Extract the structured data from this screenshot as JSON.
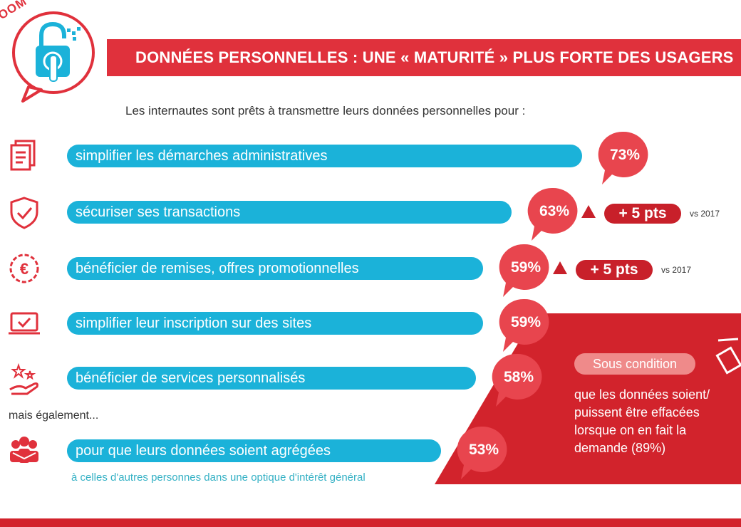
{
  "header": {
    "logo_label": "OOM",
    "title": "DONNÉES PERSONNELLES : UNE « MATURITÉ » PLUS FORTE DES USAGERS"
  },
  "intro": "Les internautes sont prêts à transmettre leurs données personnelles pour :",
  "also_label": "mais également...",
  "subnote": "à celles d'autres personnes dans une optique d'intérêt général",
  "condition": {
    "pill": "Sous condition",
    "text": "que les données soient/ puissent être effacées lorsque on en fait la demande (89%)"
  },
  "colors": {
    "bar": "#1bb2d9",
    "accent": "#e0313c",
    "dark_red": "#c8202a"
  },
  "chart_data": {
    "type": "bar",
    "orientation": "horizontal",
    "title": "Les internautes sont prêts à transmettre leurs données personnelles pour :",
    "categories": [
      "simplifier les démarches administratives",
      "sécuriser ses transactions",
      "bénéficier de remises, offres promotionnelles",
      "simplifier leur inscription sur des sites",
      "bénéficier de services personnalisés",
      "pour que leurs données soient agrégées"
    ],
    "values": [
      73,
      63,
      59,
      59,
      58,
      53
    ],
    "value_labels": [
      "73%",
      "63%",
      "59%",
      "59%",
      "58%",
      "53%"
    ],
    "icons": [
      "document-icon",
      "shield-check-icon",
      "euro-badge-icon",
      "laptop-check-icon",
      "hand-stars-icon",
      "people-group-icon"
    ],
    "changes": [
      {
        "index": 1,
        "label": "+ 5 pts",
        "ref": "vs 2017"
      },
      {
        "index": 2,
        "label": "+ 5 pts",
        "ref": "vs 2017"
      }
    ]
  }
}
